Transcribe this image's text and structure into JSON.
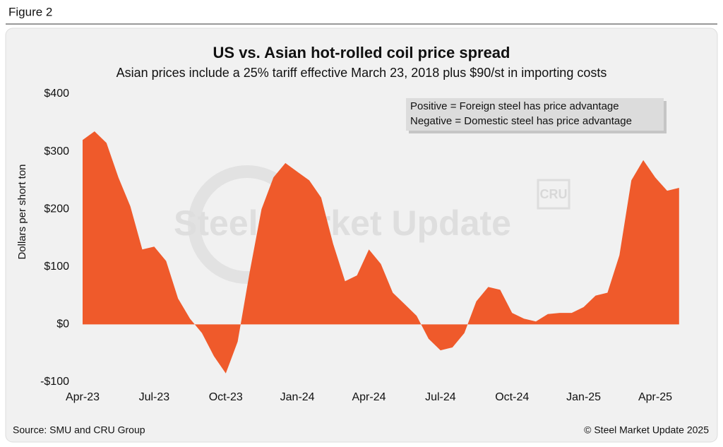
{
  "figure_label": "Figure 2",
  "chart_data": {
    "type": "area",
    "title": "US vs. Asian hot-rolled coil price spread",
    "subtitle": "Asian prices include a 25% tariff effective March 23, 2018 plus $90/st in importing costs",
    "y_label": "Dollars per short ton",
    "annotations": [
      "Positive = Foreign steel has price advantage",
      "Negative = Domestic steel has price advantage"
    ],
    "watermark": "Steel Market Update",
    "logo": "CRU",
    "source": "Source: SMU and CRU Group",
    "copyright": "© Steel Market Update 2025",
    "color": "#ef5a2b",
    "categories": [
      "Apr-23",
      null,
      null,
      null,
      null,
      null,
      "Jul-23",
      null,
      null,
      null,
      null,
      null,
      "Oct-23",
      null,
      null,
      null,
      null,
      null,
      "Jan-24",
      null,
      null,
      null,
      null,
      null,
      "Apr-24",
      null,
      null,
      null,
      null,
      null,
      "Jul-24",
      null,
      null,
      null,
      null,
      null,
      "Oct-24",
      null,
      null,
      null,
      null,
      null,
      "Jan-25",
      null,
      null,
      null,
      null,
      null,
      "Apr-25",
      null,
      null
    ],
    "values": [
      320,
      335,
      315,
      255,
      205,
      130,
      135,
      110,
      45,
      10,
      -15,
      -55,
      -85,
      -30,
      90,
      200,
      255,
      280,
      265,
      250,
      220,
      140,
      75,
      85,
      130,
      105,
      55,
      35,
      15,
      -25,
      -45,
      -40,
      -15,
      40,
      65,
      60,
      20,
      10,
      5,
      18,
      20,
      20,
      30,
      50,
      55,
      120,
      250,
      285,
      255,
      232,
      237
    ],
    "ylim": [
      -100,
      400
    ],
    "yticks": [
      {
        "value": -100,
        "label": "-$100"
      },
      {
        "value": 0,
        "label": "$0"
      },
      {
        "value": 100,
        "label": "$100"
      },
      {
        "value": 200,
        "label": "$200"
      },
      {
        "value": 300,
        "label": "$300"
      },
      {
        "value": 400,
        "label": "$400"
      }
    ],
    "grid": false
  }
}
